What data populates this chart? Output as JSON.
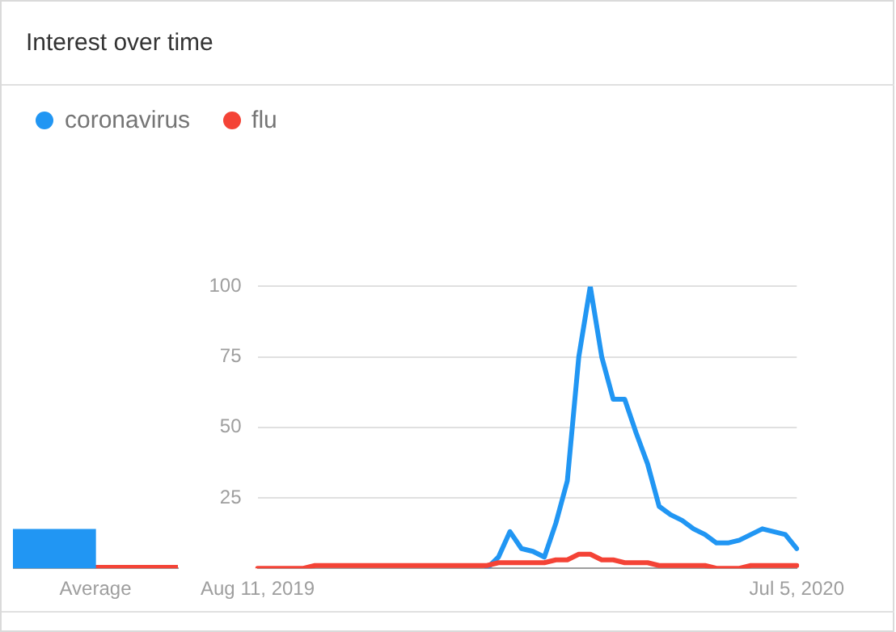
{
  "chart_data": [
    {
      "type": "bar",
      "title": "Interest over time",
      "categories": [
        "Average"
      ],
      "ylim": [
        0,
        100
      ],
      "tick_labels": "x",
      "grid": false,
      "series": [
        {
          "color": "#2196f3",
          "values": [
            14
          ]
        },
        {
          "color": "#f44336",
          "values": [
            1
          ]
        }
      ]
    },
    {
      "type": "line",
      "legend": "top left",
      "grid": "y",
      "marker": "none",
      "line_style": "solid",
      "categories": [
        "Aug 11, 2019",
        null,
        null,
        null,
        null,
        null,
        null,
        null,
        null,
        null,
        null,
        null,
        null,
        null,
        null,
        null,
        null,
        null,
        null,
        null,
        null,
        null,
        null,
        null,
        null,
        null,
        null,
        null,
        null,
        null,
        null,
        null,
        null,
        null,
        null,
        null,
        null,
        null,
        null,
        null,
        null,
        null,
        null,
        null,
        null,
        null,
        null,
        "Jul 5, 2020"
      ],
      "ylim": [
        0,
        100
      ],
      "yticks": [
        {
          "value": 0,
          "label": null
        },
        25,
        50,
        75,
        100
      ],
      "series": [
        {
          "name": "coronavirus",
          "color": "#2196f3",
          "values": [
            null,
            null,
            null,
            null,
            null,
            null,
            null,
            null,
            null,
            null,
            null,
            null,
            null,
            null,
            null,
            null,
            null,
            null,
            null,
            null,
            0,
            4,
            13,
            7,
            6,
            4,
            16,
            31,
            75,
            100,
            75,
            60,
            60,
            48,
            37,
            22,
            19,
            17,
            14,
            12,
            9,
            9,
            10,
            12,
            14,
            13,
            12,
            7
          ]
        },
        {
          "name": "flu",
          "color": "#f44336",
          "values": [
            0,
            0,
            0,
            0,
            0,
            1,
            1,
            1,
            1,
            1,
            1,
            1,
            1,
            1,
            1,
            1,
            1,
            1,
            1,
            1,
            1,
            2,
            2,
            2,
            2,
            2,
            3,
            3,
            5,
            5,
            3,
            3,
            2,
            2,
            2,
            1,
            1,
            1,
            1,
            1,
            0,
            0,
            0,
            1,
            1,
            1,
            1,
            1
          ]
        }
      ]
    }
  ]
}
